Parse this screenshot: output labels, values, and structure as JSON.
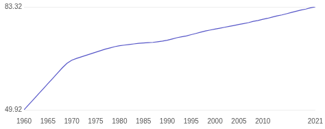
{
  "chart_data": {
    "type": "line",
    "x": [
      1960,
      1961,
      1962,
      1963,
      1964,
      1965,
      1966,
      1967,
      1968,
      1969,
      1970,
      1971,
      1972,
      1973,
      1974,
      1975,
      1976,
      1977,
      1978,
      1979,
      1980,
      1981,
      1982,
      1983,
      1984,
      1985,
      1986,
      1987,
      1988,
      1989,
      1990,
      1991,
      1992,
      1993,
      1994,
      1995,
      1996,
      1997,
      1998,
      1999,
      2000,
      2001,
      2002,
      2003,
      2004,
      2005,
      2006,
      2007,
      2008,
      2009,
      2010,
      2011,
      2012,
      2013,
      2014,
      2015,
      2016,
      2017,
      2018,
      2019,
      2020,
      2021
    ],
    "values": [
      49.92,
      51.6,
      53.3,
      55.0,
      56.7,
      58.4,
      60.1,
      61.8,
      63.5,
      65.0,
      66.0,
      66.6,
      67.1,
      67.6,
      68.1,
      68.6,
      69.1,
      69.6,
      70.0,
      70.4,
      70.7,
      70.9,
      71.1,
      71.3,
      71.5,
      71.6,
      71.7,
      71.8,
      72.0,
      72.2,
      72.5,
      72.9,
      73.3,
      73.6,
      73.9,
      74.3,
      74.7,
      75.1,
      75.5,
      75.8,
      76.1,
      76.4,
      76.7,
      77.0,
      77.3,
      77.6,
      77.9,
      78.2,
      78.6,
      78.9,
      79.3,
      79.6,
      80.0,
      80.4,
      80.7,
      81.1,
      81.5,
      81.9,
      82.3,
      82.6,
      83.0,
      83.32
    ],
    "color": "#5656c8",
    "xlim": [
      1960,
      2021
    ],
    "xticks": [
      1960,
      1965,
      1970,
      1975,
      1980,
      1985,
      1990,
      1995,
      2000,
      2005,
      2010,
      2021
    ],
    "ylim": [
      49.92,
      83.32
    ],
    "yticks": [
      49.92,
      83.32
    ],
    "grid": true
  }
}
